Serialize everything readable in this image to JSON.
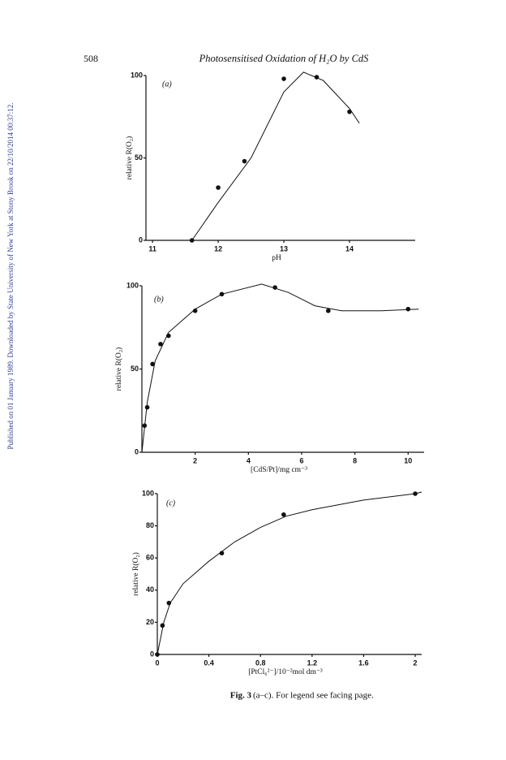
{
  "side_note": "Published on 01 January 1989. Downloaded by State University of New York at Stony Brook on 22/10/2014 00:37:12.",
  "header": {
    "page_number": "508",
    "running_title": "Photosensitised Oxidation of H₂O by CdS"
  },
  "caption": {
    "label": "Fig. 3",
    "text": "(a–c). For legend see facing page."
  },
  "chart_data": [
    {
      "type": "scatter-curve",
      "panel": "(a)",
      "x_label": "pH",
      "y_label": "relative R(O₂)",
      "x": [
        11.6,
        12.0,
        12.4,
        13.0,
        13.5,
        14.0
      ],
      "values": [
        0,
        32,
        48,
        98,
        99,
        78
      ],
      "curve_x": [
        11.6,
        12.0,
        12.5,
        13.0,
        13.3,
        13.6,
        14.0,
        14.15
      ],
      "curve_values": [
        0,
        23,
        50,
        90,
        102,
        97,
        80,
        71
      ],
      "xlim": [
        10.9,
        15
      ],
      "xticks": [
        11,
        12,
        13,
        14
      ],
      "ylim": [
        0,
        100
      ],
      "yticks": [
        0,
        50,
        100
      ],
      "color": "#111"
    },
    {
      "type": "scatter-curve",
      "panel": "(b)",
      "x_label": "[CdS/Pt]/mg cm⁻³",
      "y_label": "relative R(O₂)",
      "x": [
        0.1,
        0.2,
        0.4,
        0.7,
        1,
        2,
        3,
        5,
        7,
        10
      ],
      "values": [
        16,
        27,
        53,
        65,
        70,
        85,
        95,
        99,
        85,
        86
      ],
      "curve_x": [
        0,
        0.2,
        0.5,
        1,
        2,
        3,
        4.5,
        5.5,
        6.5,
        7.5,
        9,
        10.4
      ],
      "curve_values": [
        0,
        30,
        55,
        72,
        86,
        95,
        101,
        96,
        88,
        85,
        85,
        86
      ],
      "xlim": [
        0,
        10.6
      ],
      "xticks": [
        2,
        4,
        6,
        8,
        10
      ],
      "ylim": [
        0,
        100
      ],
      "yticks": [
        0,
        50,
        100
      ],
      "color": "#111"
    },
    {
      "type": "scatter-curve",
      "panel": "(c)",
      "x_label": "[PtCl₆²⁻]/10⁻²mol dm⁻³",
      "y_label": "relative R(O₂)",
      "x": [
        0,
        0.04,
        0.09,
        0.5,
        0.98,
        2.0
      ],
      "values": [
        0,
        18,
        32,
        63,
        87,
        100
      ],
      "curve_x": [
        0,
        0.05,
        0.1,
        0.2,
        0.4,
        0.6,
        0.8,
        1.0,
        1.2,
        1.6,
        2.0,
        2.05
      ],
      "curve_values": [
        0,
        20,
        32,
        44,
        58,
        70,
        79,
        86,
        90,
        96,
        100,
        101
      ],
      "xlim": [
        0,
        2.05
      ],
      "xticks": [
        0,
        0.4,
        0.8,
        1.2,
        1.6,
        2
      ],
      "ylim": [
        0,
        100
      ],
      "yticks": [
        0,
        20,
        40,
        60,
        80,
        100
      ],
      "color": "#111"
    }
  ]
}
